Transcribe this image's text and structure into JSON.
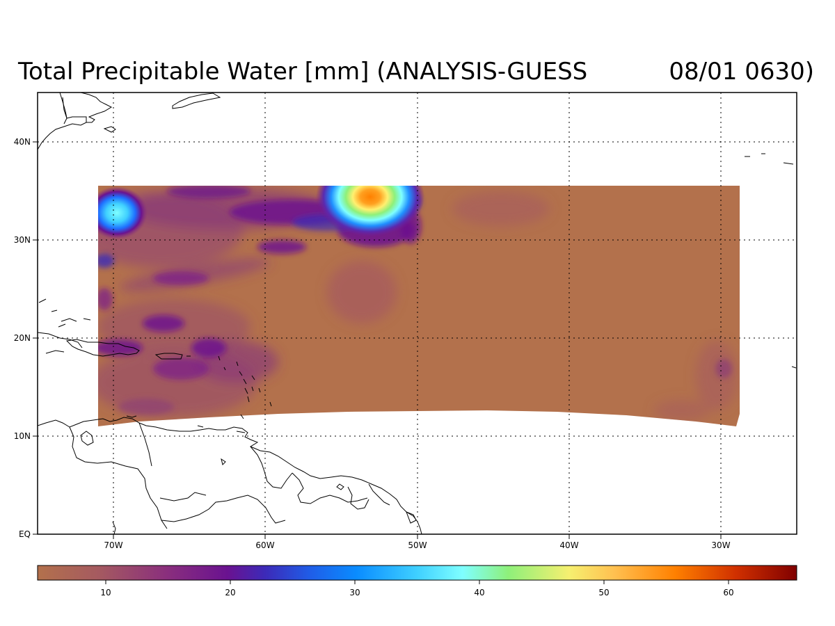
{
  "title": "Total Precipitable Water [mm] (ANALYSIS-GUESS",
  "timestamp": "08/01 0630)",
  "map": {
    "lat_ticks": [
      "40N",
      "30N",
      "20N",
      "10N",
      "EQ"
    ],
    "lon_ticks": [
      "70W",
      "60W",
      "50W",
      "40W",
      "30W"
    ],
    "lon_range": [
      -75,
      -25
    ],
    "lat_range": [
      0,
      45
    ],
    "data_domain": {
      "lon": [
        -71,
        -29
      ],
      "lat_top": 35.5,
      "lat_bottom_west": 11,
      "lat_bottom_center": 12.5,
      "lat_bottom_east": 11
    }
  },
  "colorbar": {
    "ticks": [
      "10",
      "20",
      "30",
      "40",
      "50",
      "60"
    ],
    "range": [
      4.5,
      66
    ],
    "colors": {
      "low": "#b3714c",
      "purple": "#7a1a8c",
      "blue": "#1e6fff",
      "cyan": "#7fffff",
      "green": "#8ef07a",
      "yellow": "#ffff80",
      "orange": "#ff8000",
      "darkred": "#800000"
    }
  }
}
